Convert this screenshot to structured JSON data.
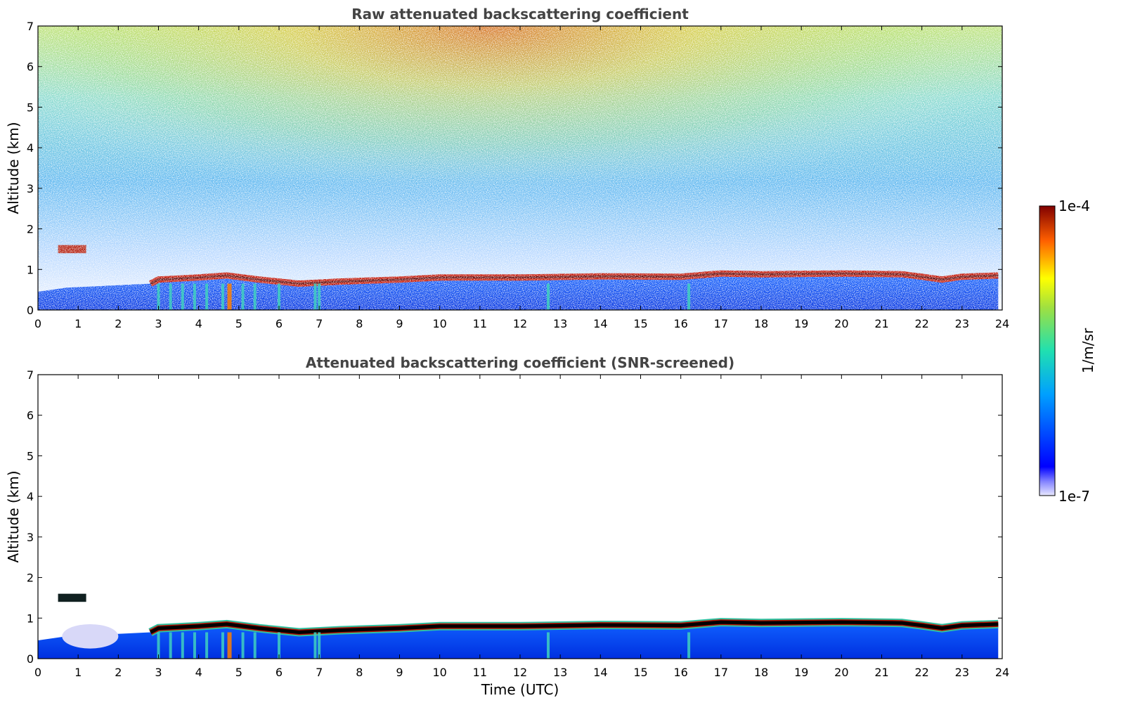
{
  "chart_data": [
    {
      "type": "heatmap",
      "title": "Raw attenuated backscattering coefficient",
      "xlabel": "",
      "ylabel": "Altitude (km)",
      "xlim": [
        0,
        24
      ],
      "ylim": [
        0,
        7
      ],
      "x_ticks": [
        "0",
        "1",
        "2",
        "3",
        "4",
        "5",
        "6",
        "7",
        "8",
        "9",
        "10",
        "11",
        "12",
        "13",
        "14",
        "15",
        "16",
        "17",
        "18",
        "19",
        "20",
        "21",
        "22",
        "23",
        "24"
      ],
      "y_ticks": [
        "0",
        "1",
        "2",
        "3",
        "4",
        "5",
        "6",
        "7"
      ],
      "boundary_layer_top_km": [
        [
          0.0,
          0.45
        ],
        [
          0.7,
          0.55
        ],
        [
          2.8,
          0.65
        ],
        [
          3.0,
          0.75
        ],
        [
          4.0,
          0.8
        ],
        [
          4.7,
          0.85
        ],
        [
          5.5,
          0.75
        ],
        [
          6.5,
          0.65
        ],
        [
          7.5,
          0.7
        ],
        [
          9.0,
          0.75
        ],
        [
          10.0,
          0.8
        ],
        [
          12.0,
          0.8
        ],
        [
          14.0,
          0.83
        ],
        [
          16.0,
          0.82
        ],
        [
          17.0,
          0.9
        ],
        [
          18.0,
          0.88
        ],
        [
          20.0,
          0.9
        ],
        [
          21.5,
          0.88
        ],
        [
          22.0,
          0.82
        ],
        [
          22.5,
          0.75
        ],
        [
          23.0,
          0.82
        ],
        [
          23.9,
          0.85
        ]
      ],
      "elevated_layer": {
        "x": [
          0.5,
          1.2
        ],
        "y_km": [
          1.4,
          1.6
        ]
      },
      "noise": "high",
      "grid": false
    },
    {
      "type": "heatmap",
      "title": "Attenuated backscattering coefficient (SNR-screened)",
      "xlabel": "Time (UTC)",
      "ylabel": "Altitude (km)",
      "xlim": [
        0,
        24
      ],
      "ylim": [
        0,
        7
      ],
      "x_ticks": [
        "0",
        "1",
        "2",
        "3",
        "4",
        "5",
        "6",
        "7",
        "8",
        "9",
        "10",
        "11",
        "12",
        "13",
        "14",
        "15",
        "16",
        "17",
        "18",
        "19",
        "20",
        "21",
        "22",
        "23",
        "24"
      ],
      "y_ticks": [
        "0",
        "1",
        "2",
        "3",
        "4",
        "5",
        "6",
        "7"
      ],
      "noise": "screened",
      "grid": false
    }
  ],
  "colorbar": {
    "label": "1/m/sr",
    "min_label": "1e-7",
    "max_label": "1e-4",
    "scale": "log",
    "colormap": "jet"
  }
}
